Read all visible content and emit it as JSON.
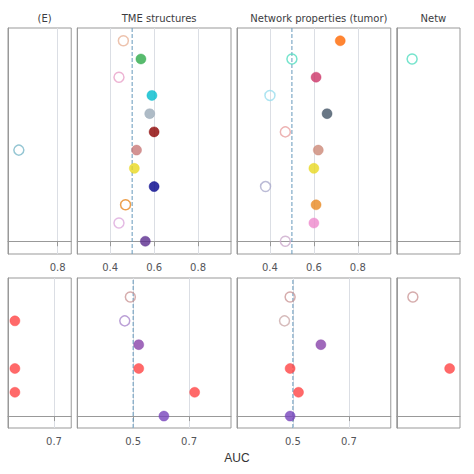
{
  "chart_data": [
    {
      "type": "scatter",
      "title": "(E)",
      "xlim": [
        0.25,
        0.95
      ],
      "xticks": [
        0.8
      ],
      "ylim": [
        -0.7,
        11.7
      ],
      "yticks": [],
      "grid": true,
      "tick_labels": "x",
      "series": [
        {
          "color": "#7ab8c8",
          "marker": "open_circle",
          "x": [
            0.37
          ],
          "y": [
            5
          ]
        }
      ]
    },
    {
      "type": "scatter",
      "title": "TME structures",
      "xlim": [
        0.25,
        0.95
      ],
      "xticks": [
        0.4,
        0.6,
        0.8
      ],
      "ylim": [
        -0.7,
        11.7
      ],
      "yticks": [],
      "grid": true,
      "tick_labels": "x",
      "series": [
        {
          "type": "line",
          "line_style": "dashed",
          "color": "#6699BB",
          "x": [
            0.5,
            0.5
          ],
          "y": [
            -0.7,
            11.7
          ]
        },
        {
          "color": "#E8B49A",
          "marker": "open_circle",
          "x": [
            0.46
          ],
          "y": [
            11
          ]
        },
        {
          "color": "#2EAA4A",
          "marker": "circle",
          "x": [
            0.54
          ],
          "y": [
            10
          ]
        },
        {
          "color": "#E8A0C8",
          "marker": "open_circle",
          "x": [
            0.44
          ],
          "y": [
            9
          ]
        },
        {
          "color": "#00BCCD",
          "marker": "circle",
          "x": [
            0.59
          ],
          "y": [
            8
          ]
        },
        {
          "color": "#9AAAB8",
          "marker": "circle",
          "x": [
            0.58
          ],
          "y": [
            7
          ]
        },
        {
          "color": "#8B0000",
          "marker": "circle",
          "x": [
            0.6
          ],
          "y": [
            6
          ]
        },
        {
          "color": "#C87878",
          "marker": "circle",
          "x": [
            0.52
          ],
          "y": [
            5
          ]
        },
        {
          "color": "#E8D820",
          "marker": "circle",
          "x": [
            0.51
          ],
          "y": [
            4
          ]
        },
        {
          "color": "#00008B",
          "marker": "circle",
          "x": [
            0.6
          ],
          "y": [
            3
          ]
        },
        {
          "color": "#E88820",
          "marker": "open_circle",
          "x": [
            0.47
          ],
          "y": [
            2
          ]
        },
        {
          "color": "#DDAADD",
          "marker": "open_circle",
          "x": [
            0.44
          ],
          "y": [
            1
          ]
        },
        {
          "color": "#5B2D8E",
          "marker": "circle",
          "x": [
            0.56
          ],
          "y": [
            0
          ]
        }
      ]
    },
    {
      "type": "scatter",
      "title": "Network properties (tumor)",
      "xlim": [
        0.25,
        0.95
      ],
      "xticks": [
        0.4,
        0.6,
        0.8
      ],
      "ylim": [
        -0.7,
        11.7
      ],
      "yticks": [],
      "grid": true,
      "tick_labels": "x",
      "series": [
        {
          "type": "line",
          "line_style": "dashed",
          "color": "#6699BB",
          "x": [
            0.5,
            0.5
          ],
          "y": [
            -0.7,
            11.7
          ]
        },
        {
          "color": "#FF6600",
          "marker": "circle",
          "x": [
            0.72
          ],
          "y": [
            11
          ]
        },
        {
          "color": "#55DDC0",
          "marker": "open_circle",
          "x": [
            0.5
          ],
          "y": [
            10
          ]
        },
        {
          "color": "#CC3366",
          "marker": "circle",
          "x": [
            0.61
          ],
          "y": [
            9
          ]
        },
        {
          "color": "#99DDEE",
          "marker": "open_circle",
          "x": [
            0.4
          ],
          "y": [
            8
          ]
        },
        {
          "color": "#445566",
          "marker": "circle",
          "x": [
            0.66
          ],
          "y": [
            7
          ]
        },
        {
          "color": "#E8A0A0",
          "marker": "open_circle",
          "x": [
            0.47
          ],
          "y": [
            6
          ]
        },
        {
          "color": "#CC8877",
          "marker": "circle",
          "x": [
            0.62
          ],
          "y": [
            5
          ]
        },
        {
          "color": "#E8D820",
          "marker": "circle",
          "x": [
            0.6
          ],
          "y": [
            4
          ]
        },
        {
          "color": "#AAAACC",
          "marker": "open_circle",
          "x": [
            0.38
          ],
          "y": [
            3
          ]
        },
        {
          "color": "#E88820",
          "marker": "circle",
          "x": [
            0.61
          ],
          "y": [
            2
          ]
        },
        {
          "color": "#EE88CC",
          "marker": "circle",
          "x": [
            0.6
          ],
          "y": [
            1
          ]
        },
        {
          "color": "#CCAACC",
          "marker": "open_circle",
          "x": [
            0.47
          ],
          "y": [
            0
          ]
        }
      ]
    },
    {
      "type": "scatter",
      "title": "Netw",
      "xlim": [
        0.25,
        0.95
      ],
      "xticks": [],
      "ylim": [
        -0.7,
        11.7
      ],
      "yticks": [],
      "grid": true,
      "tick_labels": false,
      "series": [
        {
          "color": "#55DDC0",
          "marker": "open_circle",
          "x": [
            0.42
          ],
          "y": [
            10
          ]
        }
      ]
    },
    {
      "type": "scatter",
      "xlim": [
        0.3,
        0.85
      ],
      "xticks": [
        0.7
      ],
      "ylim": [
        -0.5,
        5.8
      ],
      "yticks": [],
      "grid": true,
      "tick_labels": "x",
      "series": [
        {
          "color": "#FF4444",
          "marker": "circle",
          "x": [
            0.36
          ],
          "y": [
            4
          ]
        },
        {
          "color": "#FF4444",
          "marker": "circle",
          "x": [
            0.36
          ],
          "y": [
            2
          ]
        },
        {
          "color": "#FF4444",
          "marker": "circle",
          "x": [
            0.36
          ],
          "y": [
            1
          ]
        }
      ]
    },
    {
      "type": "scatter",
      "xlabel": "AUC",
      "xlim": [
        0.3,
        0.85
      ],
      "xticks": [
        0.5,
        0.7
      ],
      "ylim": [
        -0.5,
        5.8
      ],
      "yticks": [],
      "grid": true,
      "tick_labels": "x",
      "series": [
        {
          "type": "line",
          "line_style": "dashed",
          "color": "#6699BB",
          "x": [
            0.5,
            0.5
          ],
          "y": [
            -0.5,
            5.8
          ]
        },
        {
          "color": "#CC9999",
          "marker": "open_circle",
          "x": [
            0.49
          ],
          "y": [
            5
          ]
        },
        {
          "color": "#AA88CC",
          "marker": "open_circle",
          "x": [
            0.47
          ],
          "y": [
            4
          ]
        },
        {
          "color": "#8844AA",
          "marker": "circle",
          "x": [
            0.52
          ],
          "y": [
            3
          ]
        },
        {
          "color": "#FF4444",
          "marker": "circle",
          "x": [
            0.52
          ],
          "y": [
            2
          ]
        },
        {
          "color": "#FF4444",
          "marker": "circle",
          "x": [
            0.72
          ],
          "y": [
            1
          ]
        },
        {
          "color": "#7744BB",
          "marker": "circle",
          "x": [
            0.61
          ],
          "y": [
            0
          ]
        }
      ]
    },
    {
      "type": "scatter",
      "xlim": [
        0.3,
        0.85
      ],
      "xticks": [
        0.5,
        0.7
      ],
      "ylim": [
        -0.5,
        5.8
      ],
      "yticks": [],
      "grid": true,
      "tick_labels": "x",
      "series": [
        {
          "type": "line",
          "line_style": "dashed",
          "color": "#6699BB",
          "x": [
            0.5,
            0.5
          ],
          "y": [
            -0.5,
            5.8
          ]
        },
        {
          "color": "#CC9999",
          "marker": "open_circle",
          "x": [
            0.49
          ],
          "y": [
            5
          ]
        },
        {
          "color": "#CCAAAA",
          "marker": "open_circle",
          "x": [
            0.47
          ],
          "y": [
            4
          ]
        },
        {
          "color": "#8844AA",
          "marker": "circle",
          "x": [
            0.6
          ],
          "y": [
            3
          ]
        },
        {
          "color": "#FF4444",
          "marker": "circle",
          "x": [
            0.49
          ],
          "y": [
            2
          ]
        },
        {
          "color": "#FF4444",
          "marker": "circle",
          "x": [
            0.52
          ],
          "y": [
            1
          ]
        },
        {
          "color": "#7744BB",
          "marker": "circle",
          "x": [
            0.49
          ],
          "y": [
            0
          ]
        }
      ]
    },
    {
      "type": "scatter",
      "xlim": [
        0.3,
        0.85
      ],
      "xticks": [],
      "ylim": [
        -0.5,
        5.8
      ],
      "yticks": [],
      "grid": true,
      "tick_labels": false,
      "series": [
        {
          "color": "#CC9999",
          "marker": "open_circle",
          "x": [
            0.44
          ],
          "y": [
            5
          ]
        },
        {
          "color": "#FF4444",
          "marker": "circle",
          "x": [
            0.76
          ],
          "y": [
            2
          ]
        }
      ]
    }
  ]
}
